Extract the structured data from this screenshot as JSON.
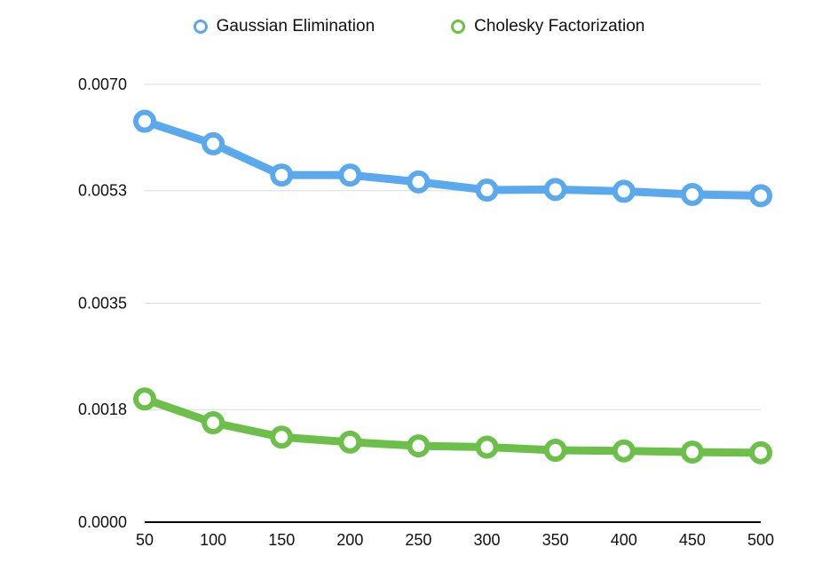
{
  "chart_data": {
    "type": "line",
    "x": [
      50,
      100,
      150,
      200,
      250,
      300,
      350,
      400,
      450,
      500
    ],
    "y_ticks": [
      "0.0000",
      "0.0018",
      "0.0035",
      "0.0053",
      "0.0070"
    ],
    "ylim": [
      0,
      0.007
    ],
    "grid": true,
    "legend_position": "top-center",
    "series": [
      {
        "name": "Gaussian Elimination",
        "color": "#5aa9ee",
        "values": [
          0.00641,
          0.00605,
          0.00555,
          0.00555,
          0.00544,
          0.00531,
          0.00532,
          0.00529,
          0.00524,
          0.00522
        ]
      },
      {
        "name": "Cholesky Factorization",
        "color": "#6cbf48",
        "values": [
          0.00197,
          0.00159,
          0.00136,
          0.00128,
          0.00122,
          0.0012,
          0.00115,
          0.00114,
          0.00112,
          0.00111
        ]
      }
    ]
  }
}
